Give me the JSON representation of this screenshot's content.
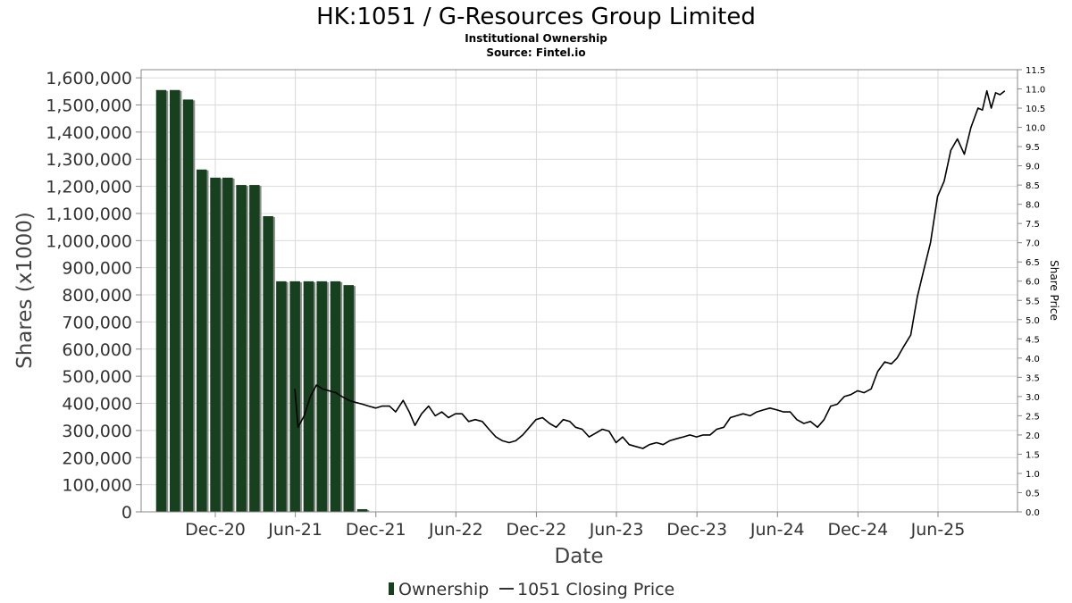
{
  "chart_data": {
    "type": "bar+line",
    "title": "HK:1051 / G-Resources Group Limited",
    "subtitle_1": "Institutional Ownership",
    "subtitle_2": "Source: Fintel.io",
    "xlabel": "Date",
    "ylabel": "Shares (x1000)",
    "y2label": "Share Price",
    "ylim": [
      0,
      1630000
    ],
    "y2lim": [
      0,
      11.5
    ],
    "grid": true,
    "legend_position": "bottom",
    "colors": {
      "bars": "#17401f",
      "bar_shadow": "#8a8a8a",
      "line": "#000000",
      "grid": "#d9d9d9"
    },
    "yticks": [
      "0",
      "100,000",
      "200,000",
      "300,000",
      "400,000",
      "500,000",
      "600,000",
      "700,000",
      "800,000",
      "900,000",
      "1,000,000",
      "1,100,000",
      "1,200,000",
      "1,300,000",
      "1,400,000",
      "1,500,000",
      "1,600,000"
    ],
    "y2ticks": [
      "0.0",
      "0.5",
      "1.0",
      "1.5",
      "2.0",
      "2.5",
      "3.0",
      "3.5",
      "4.0",
      "4.5",
      "5.0",
      "5.5",
      "6.0",
      "6.5",
      "7.0",
      "7.5",
      "8.0",
      "8.5",
      "9.0",
      "9.5",
      "10.0",
      "10.5",
      "11.0",
      "11.5"
    ],
    "xticks": [
      {
        "label": "Dec-20",
        "date": "2020-12-01"
      },
      {
        "label": "Jun-21",
        "date": "2021-06-01"
      },
      {
        "label": "Dec-21",
        "date": "2021-12-01"
      },
      {
        "label": "Jun-22",
        "date": "2022-06-01"
      },
      {
        "label": "Dec-22",
        "date": "2022-12-01"
      },
      {
        "label": "Jun-23",
        "date": "2023-06-01"
      },
      {
        "label": "Dec-23",
        "date": "2023-12-01"
      },
      {
        "label": "Jun-24",
        "date": "2024-06-01"
      },
      {
        "label": "Dec-24",
        "date": "2024-12-01"
      },
      {
        "label": "Jun-25",
        "date": "2025-06-01"
      }
    ],
    "series": [
      {
        "name": "Ownership",
        "type": "bar",
        "axis": "left",
        "points": [
          {
            "date": "2020-09-30",
            "value": 1555000
          },
          {
            "date": "2020-10-31",
            "value": 1555000
          },
          {
            "date": "2020-11-30",
            "value": 1520000
          },
          {
            "date": "2020-12-31",
            "value": 1262000
          },
          {
            "date": "2021-01-31",
            "value": 1232000
          },
          {
            "date": "2021-02-28",
            "value": 1232000
          },
          {
            "date": "2021-03-31",
            "value": 1205000
          },
          {
            "date": "2021-04-30",
            "value": 1205000
          },
          {
            "date": "2021-05-31",
            "value": 1090000
          },
          {
            "date": "2021-06-30",
            "value": 850000
          },
          {
            "date": "2021-07-31",
            "value": 850000
          },
          {
            "date": "2021-08-31",
            "value": 850000
          },
          {
            "date": "2021-09-30",
            "value": 850000
          },
          {
            "date": "2021-10-31",
            "value": 850000
          },
          {
            "date": "2021-11-30",
            "value": 836000
          },
          {
            "date": "2021-12-31",
            "value": 10000
          }
        ]
      },
      {
        "name": "1051 Closing Price",
        "type": "line",
        "axis": "right",
        "points": [
          [
            "2021-05-31",
            3.2
          ],
          [
            "2021-06-07",
            2.2
          ],
          [
            "2021-06-21",
            2.5
          ],
          [
            "2021-07-05",
            3.0
          ],
          [
            "2021-07-19",
            3.3
          ],
          [
            "2021-08-02",
            3.2
          ],
          [
            "2021-08-16",
            3.15
          ],
          [
            "2021-09-01",
            3.1
          ],
          [
            "2021-09-15",
            3.0
          ],
          [
            "2021-10-01",
            2.9
          ],
          [
            "2021-10-15",
            2.85
          ],
          [
            "2021-11-01",
            2.8
          ],
          [
            "2021-11-15",
            2.75
          ],
          [
            "2021-12-01",
            2.7
          ],
          [
            "2021-12-15",
            2.75
          ],
          [
            "2022-01-01",
            2.75
          ],
          [
            "2022-01-15",
            2.6
          ],
          [
            "2022-02-01",
            2.9
          ],
          [
            "2022-02-15",
            2.6
          ],
          [
            "2022-02-28",
            2.25
          ],
          [
            "2022-03-15",
            2.55
          ],
          [
            "2022-03-31",
            2.75
          ],
          [
            "2022-04-15",
            2.5
          ],
          [
            "2022-04-30",
            2.6
          ],
          [
            "2022-05-15",
            2.45
          ],
          [
            "2022-05-31",
            2.55
          ],
          [
            "2022-06-15",
            2.55
          ],
          [
            "2022-06-30",
            2.35
          ],
          [
            "2022-07-15",
            2.4
          ],
          [
            "2022-07-31",
            2.35
          ],
          [
            "2022-08-15",
            2.15
          ],
          [
            "2022-08-31",
            1.95
          ],
          [
            "2022-09-15",
            1.85
          ],
          [
            "2022-09-30",
            1.8
          ],
          [
            "2022-10-15",
            1.85
          ],
          [
            "2022-10-31",
            2.0
          ],
          [
            "2022-11-15",
            2.2
          ],
          [
            "2022-11-30",
            2.4
          ],
          [
            "2022-12-15",
            2.45
          ],
          [
            "2022-12-31",
            2.3
          ],
          [
            "2023-01-15",
            2.2
          ],
          [
            "2023-01-31",
            2.4
          ],
          [
            "2023-02-15",
            2.35
          ],
          [
            "2023-02-28",
            2.2
          ],
          [
            "2023-03-15",
            2.15
          ],
          [
            "2023-03-31",
            1.95
          ],
          [
            "2023-04-15",
            2.05
          ],
          [
            "2023-04-30",
            2.15
          ],
          [
            "2023-05-15",
            2.1
          ],
          [
            "2023-05-31",
            1.8
          ],
          [
            "2023-06-15",
            1.95
          ],
          [
            "2023-06-30",
            1.75
          ],
          [
            "2023-07-15",
            1.7
          ],
          [
            "2023-07-31",
            1.65
          ],
          [
            "2023-08-15",
            1.75
          ],
          [
            "2023-08-31",
            1.8
          ],
          [
            "2023-09-15",
            1.75
          ],
          [
            "2023-09-30",
            1.85
          ],
          [
            "2023-10-15",
            1.9
          ],
          [
            "2023-10-31",
            1.95
          ],
          [
            "2023-11-15",
            2.0
          ],
          [
            "2023-11-30",
            1.95
          ],
          [
            "2023-12-15",
            2.0
          ],
          [
            "2023-12-31",
            2.0
          ],
          [
            "2024-01-15",
            2.15
          ],
          [
            "2024-01-31",
            2.2
          ],
          [
            "2024-02-15",
            2.45
          ],
          [
            "2024-02-29",
            2.5
          ],
          [
            "2024-03-15",
            2.55
          ],
          [
            "2024-03-31",
            2.5
          ],
          [
            "2024-04-15",
            2.6
          ],
          [
            "2024-04-30",
            2.65
          ],
          [
            "2024-05-15",
            2.7
          ],
          [
            "2024-05-31",
            2.65
          ],
          [
            "2024-06-15",
            2.6
          ],
          [
            "2024-06-30",
            2.6
          ],
          [
            "2024-07-15",
            2.4
          ],
          [
            "2024-07-31",
            2.3
          ],
          [
            "2024-08-15",
            2.35
          ],
          [
            "2024-08-31",
            2.2
          ],
          [
            "2024-09-15",
            2.4
          ],
          [
            "2024-09-30",
            2.75
          ],
          [
            "2024-10-15",
            2.8
          ],
          [
            "2024-10-31",
            3.0
          ],
          [
            "2024-11-15",
            3.05
          ],
          [
            "2024-11-30",
            3.15
          ],
          [
            "2024-12-15",
            3.1
          ],
          [
            "2024-12-31",
            3.2
          ],
          [
            "2025-01-15",
            3.65
          ],
          [
            "2025-01-31",
            3.9
          ],
          [
            "2025-02-15",
            3.85
          ],
          [
            "2025-02-28",
            4.0
          ],
          [
            "2025-03-15",
            4.3
          ],
          [
            "2025-03-31",
            4.6
          ],
          [
            "2025-04-15",
            5.6
          ],
          [
            "2025-04-30",
            6.3
          ],
          [
            "2025-05-15",
            7.0
          ],
          [
            "2025-05-31",
            8.2
          ],
          [
            "2025-06-15",
            8.6
          ],
          [
            "2025-06-30",
            9.4
          ],
          [
            "2025-07-15",
            9.7
          ],
          [
            "2025-07-31",
            9.3
          ],
          [
            "2025-08-15",
            10.0
          ],
          [
            "2025-08-31",
            10.5
          ],
          [
            "2025-09-10",
            10.45
          ],
          [
            "2025-09-20",
            10.95
          ],
          [
            "2025-09-30",
            10.5
          ],
          [
            "2025-10-10",
            10.9
          ],
          [
            "2025-10-20",
            10.85
          ],
          [
            "2025-10-31",
            10.95
          ]
        ]
      }
    ]
  }
}
